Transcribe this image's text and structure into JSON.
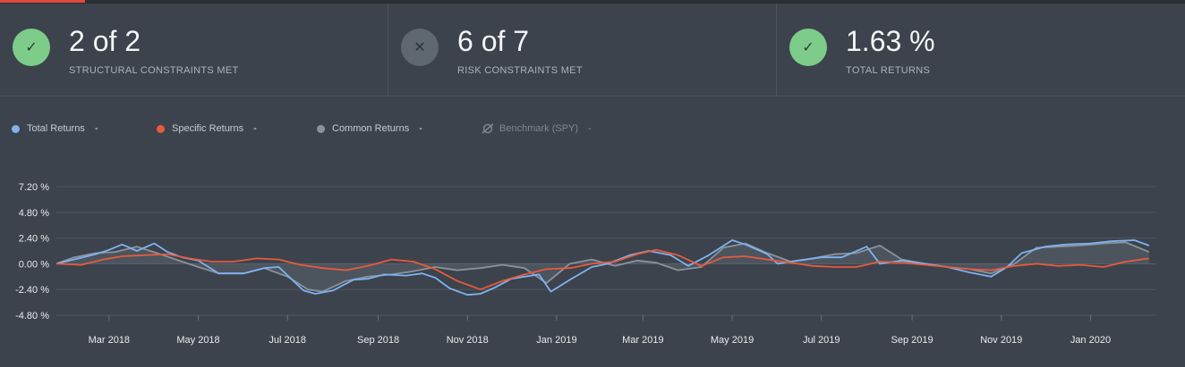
{
  "cards": [
    {
      "value": "2 of 2",
      "label": "STRUCTURAL CONSTRAINTS MET",
      "status": "met",
      "icon": "check-icon",
      "color": "#7dcc8a"
    },
    {
      "value": "6 of 7",
      "label": "RISK CONSTRAINTS MET",
      "status": "not-met",
      "icon": "close-icon",
      "color": "#5f6770"
    },
    {
      "value": "1.63 %",
      "label": "TOTAL RETURNS",
      "status": "met",
      "icon": "check-icon",
      "color": "#7dcc8a"
    }
  ],
  "legend": [
    {
      "label": "Total Returns",
      "value": "-",
      "color": "#7fb2f0",
      "enabled": true
    },
    {
      "label": "Specific Returns",
      "value": "-",
      "color": "#e85a3c",
      "enabled": true
    },
    {
      "label": "Common Returns",
      "value": "-",
      "color": "#8a939d",
      "enabled": true
    },
    {
      "label": "Benchmark (SPY)",
      "value": "-",
      "color": "#7e8791",
      "enabled": false
    }
  ],
  "chart_data": {
    "type": "line",
    "yticks": [
      "7.20 %",
      "4.80 %",
      "2.40 %",
      "0.00 %",
      "-2.40 %",
      "-4.80 %"
    ],
    "ylim": [
      -4.8,
      7.2
    ],
    "xticks": [
      "Mar 2018",
      "May 2018",
      "Jul 2018",
      "Sep 2018",
      "Nov 2018",
      "Jan 2019",
      "Mar 2019",
      "May 2019",
      "Jul 2019",
      "Sep 2019",
      "Nov 2019",
      "Jan 2020"
    ],
    "xlim": [
      "2018-01-24",
      "2020-02-15"
    ],
    "grid": true,
    "series": [
      {
        "name": "Total Returns",
        "color": "#7fb2f0",
        "points": [
          [
            "2018-01-24",
            0.0
          ],
          [
            "2018-02-05",
            0.4
          ],
          [
            "2018-02-20",
            0.9
          ],
          [
            "2018-03-01",
            1.3
          ],
          [
            "2018-03-10",
            1.8
          ],
          [
            "2018-03-20",
            1.2
          ],
          [
            "2018-04-01",
            1.9
          ],
          [
            "2018-04-10",
            1.1
          ],
          [
            "2018-04-20",
            0.6
          ],
          [
            "2018-05-01",
            0.3
          ],
          [
            "2018-05-15",
            -0.9
          ],
          [
            "2018-06-01",
            -0.9
          ],
          [
            "2018-06-15",
            -0.4
          ],
          [
            "2018-06-25",
            -0.3
          ],
          [
            "2018-07-05",
            -1.6
          ],
          [
            "2018-07-12",
            -2.5
          ],
          [
            "2018-07-20",
            -2.8
          ],
          [
            "2018-08-01",
            -2.5
          ],
          [
            "2018-08-15",
            -1.5
          ],
          [
            "2018-08-25",
            -1.4
          ],
          [
            "2018-09-05",
            -1.0
          ],
          [
            "2018-09-20",
            -1.1
          ],
          [
            "2018-10-01",
            -0.9
          ],
          [
            "2018-10-10",
            -1.3
          ],
          [
            "2018-10-20",
            -2.3
          ],
          [
            "2018-11-01",
            -2.9
          ],
          [
            "2018-11-10",
            -2.8
          ],
          [
            "2018-11-20",
            -2.2
          ],
          [
            "2018-12-01",
            -1.4
          ],
          [
            "2018-12-10",
            -1.2
          ],
          [
            "2018-12-20",
            -1.0
          ],
          [
            "2018-12-28",
            -2.6
          ],
          [
            "2019-01-10",
            -1.5
          ],
          [
            "2019-01-25",
            -0.3
          ],
          [
            "2019-02-05",
            0.0
          ],
          [
            "2019-02-20",
            0.8
          ],
          [
            "2019-03-05",
            1.2
          ],
          [
            "2019-03-20",
            0.8
          ],
          [
            "2019-04-01",
            -0.2
          ],
          [
            "2019-04-15",
            0.8
          ],
          [
            "2019-05-01",
            2.2
          ],
          [
            "2019-05-10",
            1.8
          ],
          [
            "2019-05-25",
            0.9
          ],
          [
            "2019-06-01",
            0.0
          ],
          [
            "2019-06-15",
            0.3
          ],
          [
            "2019-07-01",
            0.6
          ],
          [
            "2019-07-15",
            0.6
          ],
          [
            "2019-08-01",
            1.6
          ],
          [
            "2019-08-10",
            0.0
          ],
          [
            "2019-08-25",
            0.3
          ],
          [
            "2019-09-10",
            0.0
          ],
          [
            "2019-09-25",
            -0.3
          ],
          [
            "2019-10-10",
            -0.8
          ],
          [
            "2019-10-25",
            -1.2
          ],
          [
            "2019-11-05",
            -0.3
          ],
          [
            "2019-11-15",
            1.0
          ],
          [
            "2019-12-01",
            1.6
          ],
          [
            "2019-12-15",
            1.8
          ],
          [
            "2020-01-01",
            1.9
          ],
          [
            "2020-01-15",
            2.1
          ],
          [
            "2020-01-31",
            2.2
          ],
          [
            "2020-02-10",
            1.7
          ]
        ]
      },
      {
        "name": "Specific Returns",
        "color": "#e85a3c",
        "points": [
          [
            "2018-01-24",
            0.0
          ],
          [
            "2018-02-10",
            -0.1
          ],
          [
            "2018-02-25",
            0.4
          ],
          [
            "2018-03-10",
            0.7
          ],
          [
            "2018-03-25",
            0.8
          ],
          [
            "2018-04-10",
            0.9
          ],
          [
            "2018-04-25",
            0.5
          ],
          [
            "2018-05-10",
            0.2
          ],
          [
            "2018-05-25",
            0.2
          ],
          [
            "2018-06-10",
            0.5
          ],
          [
            "2018-06-25",
            0.4
          ],
          [
            "2018-07-10",
            -0.1
          ],
          [
            "2018-07-25",
            -0.4
          ],
          [
            "2018-08-10",
            -0.6
          ],
          [
            "2018-08-25",
            -0.2
          ],
          [
            "2018-09-10",
            0.4
          ],
          [
            "2018-09-25",
            0.2
          ],
          [
            "2018-10-10",
            -0.5
          ],
          [
            "2018-10-25",
            -1.6
          ],
          [
            "2018-11-10",
            -2.4
          ],
          [
            "2018-11-25",
            -1.6
          ],
          [
            "2018-12-10",
            -1.0
          ],
          [
            "2018-12-25",
            -0.5
          ],
          [
            "2019-01-10",
            -0.4
          ],
          [
            "2019-01-25",
            0.0
          ],
          [
            "2019-02-10",
            0.2
          ],
          [
            "2019-02-25",
            0.9
          ],
          [
            "2019-03-10",
            1.3
          ],
          [
            "2019-03-25",
            0.8
          ],
          [
            "2019-04-10",
            -0.2
          ],
          [
            "2019-04-25",
            0.6
          ],
          [
            "2019-05-10",
            0.7
          ],
          [
            "2019-05-25",
            0.4
          ],
          [
            "2019-06-10",
            0.1
          ],
          [
            "2019-06-25",
            -0.2
          ],
          [
            "2019-07-10",
            -0.3
          ],
          [
            "2019-07-25",
            -0.3
          ],
          [
            "2019-08-10",
            0.2
          ],
          [
            "2019-08-25",
            0.1
          ],
          [
            "2019-09-10",
            -0.1
          ],
          [
            "2019-09-25",
            -0.3
          ],
          [
            "2019-10-10",
            -0.5
          ],
          [
            "2019-10-25",
            -0.6
          ],
          [
            "2019-11-10",
            -0.2
          ],
          [
            "2019-11-25",
            0.0
          ],
          [
            "2019-12-10",
            -0.2
          ],
          [
            "2019-12-25",
            -0.1
          ],
          [
            "2020-01-10",
            -0.3
          ],
          [
            "2020-01-25",
            0.2
          ],
          [
            "2020-02-10",
            0.5
          ]
        ]
      },
      {
        "name": "Common Returns",
        "color": "#8a939d",
        "points": [
          [
            "2018-01-24",
            0.0
          ],
          [
            "2018-02-05",
            0.6
          ],
          [
            "2018-02-20",
            1.0
          ],
          [
            "2018-03-05",
            1.1
          ],
          [
            "2018-03-20",
            1.6
          ],
          [
            "2018-04-05",
            0.9
          ],
          [
            "2018-04-20",
            0.2
          ],
          [
            "2018-05-01",
            -0.3
          ],
          [
            "2018-05-15",
            -0.9
          ],
          [
            "2018-06-01",
            -0.9
          ],
          [
            "2018-06-15",
            -0.4
          ],
          [
            "2018-07-01",
            -1.2
          ],
          [
            "2018-07-15",
            -2.4
          ],
          [
            "2018-07-25",
            -2.6
          ],
          [
            "2018-08-10",
            -1.6
          ],
          [
            "2018-08-25",
            -1.2
          ],
          [
            "2018-09-10",
            -1.0
          ],
          [
            "2018-09-25",
            -0.7
          ],
          [
            "2018-10-10",
            -0.3
          ],
          [
            "2018-10-25",
            -0.6
          ],
          [
            "2018-11-10",
            -0.4
          ],
          [
            "2018-11-25",
            -0.1
          ],
          [
            "2018-12-10",
            -0.4
          ],
          [
            "2018-12-25",
            -1.8
          ],
          [
            "2019-01-10",
            0.0
          ],
          [
            "2019-01-25",
            0.4
          ],
          [
            "2019-02-10",
            -0.2
          ],
          [
            "2019-02-25",
            0.3
          ],
          [
            "2019-03-10",
            0.1
          ],
          [
            "2019-03-25",
            -0.6
          ],
          [
            "2019-04-10",
            -0.3
          ],
          [
            "2019-04-25",
            1.5
          ],
          [
            "2019-05-10",
            1.9
          ],
          [
            "2019-05-25",
            1.0
          ],
          [
            "2019-06-10",
            0.2
          ],
          [
            "2019-06-25",
            0.5
          ],
          [
            "2019-07-10",
            0.9
          ],
          [
            "2019-07-25",
            1.0
          ],
          [
            "2019-08-10",
            1.7
          ],
          [
            "2019-08-25",
            0.4
          ],
          [
            "2019-09-10",
            0.0
          ],
          [
            "2019-09-25",
            -0.3
          ],
          [
            "2019-10-10",
            -0.5
          ],
          [
            "2019-10-25",
            -0.9
          ],
          [
            "2019-11-10",
            0.0
          ],
          [
            "2019-11-25",
            1.5
          ],
          [
            "2019-12-10",
            1.6
          ],
          [
            "2019-12-25",
            1.7
          ],
          [
            "2020-01-10",
            1.9
          ],
          [
            "2020-01-25",
            2.0
          ],
          [
            "2020-02-10",
            1.1
          ]
        ]
      }
    ]
  }
}
